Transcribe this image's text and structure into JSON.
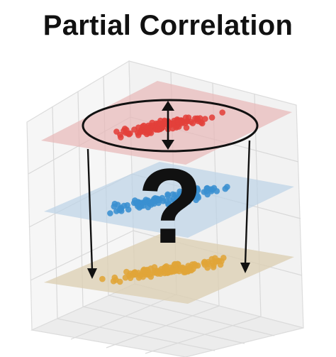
{
  "title": "Partial Correlation",
  "question_mark": "?",
  "colors": {
    "top_plane": "#e8b8b8",
    "middle_plane": "#bcd3e6",
    "bottom_plane": "#ddd0b4",
    "top_points": "#e2403a",
    "middle_points": "#3a8fd0",
    "bottom_points": "#e0a538",
    "ink": "#111111",
    "grid": "#d8d8d8"
  },
  "icons": {
    "arrows": "down-arrow-icon",
    "double_arrow": "vertical-double-arrow-icon",
    "ellipse": "ellipse-outline"
  }
}
